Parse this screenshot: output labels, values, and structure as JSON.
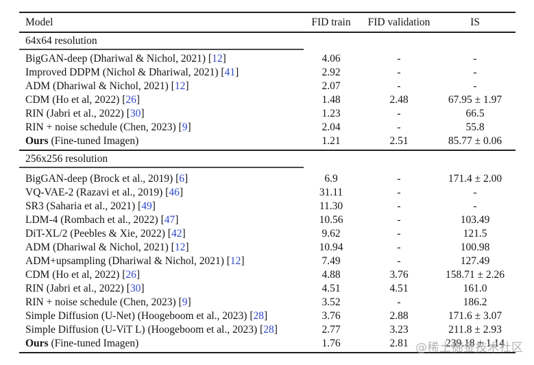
{
  "colors": {
    "citation_blue": "#2f45c5",
    "rule_dark": "#1f1f1f",
    "rule_section": "#4a4a4a",
    "watermark_gray": "#a8a3a3"
  },
  "watermark": {
    "text": "@稀土掘金技术社区"
  },
  "table": {
    "headers": [
      "Model",
      "FID train",
      "FID validation",
      "IS"
    ],
    "sections": [
      {
        "title": "64x64 resolution",
        "rows": [
          {
            "name_bold": "",
            "name": "BigGAN-deep (Dhariwal & Nichol, 2021)",
            "ref": "12",
            "fid_train": "4.06",
            "fid_validation": "-",
            "is": "-"
          },
          {
            "name_bold": "",
            "name": "Improved DDPM (Nichol & Dhariwal, 2021)",
            "ref": "41",
            "fid_train": "2.92",
            "fid_validation": "-",
            "is": "-"
          },
          {
            "name_bold": "",
            "name": "ADM (Dhariwal & Nichol, 2021)",
            "ref": "12",
            "fid_train": "2.07",
            "fid_validation": "-",
            "is": "-"
          },
          {
            "name_bold": "",
            "name": "CDM (Ho et al, 2022)",
            "ref": "26",
            "fid_train": "1.48",
            "fid_validation": "2.48",
            "is": "67.95 ± 1.97"
          },
          {
            "name_bold": "",
            "name": "RIN (Jabri et al., 2022)",
            "ref": "30",
            "fid_train": "1.23",
            "fid_validation": "-",
            "is": "66.5"
          },
          {
            "name_bold": "",
            "name": "RIN + noise schedule (Chen, 2023)",
            "ref": "9",
            "fid_train": "2.04",
            "fid_validation": "-",
            "is": "55.8"
          },
          {
            "name_bold": "Ours",
            "name": " (Fine-tuned Imagen)",
            "ref": null,
            "fid_train": "1.21",
            "fid_validation": "2.51",
            "is": "85.77 ± 0.06"
          }
        ]
      },
      {
        "title": "256x256 resolution",
        "rows": [
          {
            "name_bold": "",
            "name": "BigGAN-deep (Brock et al., 2019)",
            "ref": "6",
            "fid_train": "6.9",
            "fid_validation": "-",
            "is": "171.4 ± 2.00"
          },
          {
            "name_bold": "",
            "name": "VQ-VAE-2 (Razavi et al., 2019)",
            "ref": "46",
            "fid_train": "31.11",
            "fid_validation": "-",
            "is": "-"
          },
          {
            "name_bold": "",
            "name": "SR3 (Saharia et al., 2021)",
            "ref": "49",
            "fid_train": "11.30",
            "fid_validation": "-",
            "is": "-"
          },
          {
            "name_bold": "",
            "name": "LDM-4 (Rombach et al., 2022)",
            "ref": "47",
            "fid_train": "10.56",
            "fid_validation": "-",
            "is": "103.49"
          },
          {
            "name_bold": "",
            "name": "DiT-XL/2 (Peebles & Xie, 2022)",
            "ref": "42",
            "fid_train": "9.62",
            "fid_validation": "-",
            "is": "121.5"
          },
          {
            "name_bold": "",
            "name": "ADM (Dhariwal & Nichol, 2021)",
            "ref": "12",
            "fid_train": "10.94",
            "fid_validation": "-",
            "is": "100.98"
          },
          {
            "name_bold": "",
            "name": "ADM+upsampling (Dhariwal & Nichol, 2021)",
            "ref": "12",
            "fid_train": "7.49",
            "fid_validation": "-",
            "is": "127.49"
          },
          {
            "name_bold": "",
            "name": "CDM (Ho et al, 2022)",
            "ref": "26",
            "fid_train": "4.88",
            "fid_validation": "3.76",
            "is": "158.71 ± 2.26"
          },
          {
            "name_bold": "",
            "name": "RIN (Jabri et al., 2022)",
            "ref": "30",
            "fid_train": "4.51",
            "fid_validation": "4.51",
            "is": "161.0"
          },
          {
            "name_bold": "",
            "name": "RIN + noise schedule (Chen, 2023)",
            "ref": "9",
            "fid_train": "3.52",
            "fid_validation": "-",
            "is": "186.2"
          },
          {
            "name_bold": "",
            "name": "Simple Diffusion (U-Net) (Hoogeboom et al., 2023)",
            "ref": "28",
            "fid_train": "3.76",
            "fid_validation": "2.88",
            "is": "171.6 ± 3.07"
          },
          {
            "name_bold": "",
            "name": "Simple Diffusion (U-ViT L) (Hoogeboom et al., 2023)",
            "ref": "28",
            "fid_train": "2.77",
            "fid_validation": "3.23",
            "is": "211.8 ± 2.93"
          },
          {
            "name_bold": "Ours",
            "name": " (Fine-tuned Imagen)",
            "ref": null,
            "fid_train": "1.76",
            "fid_validation": "2.81",
            "is": "239.18 ± 1.14"
          }
        ]
      }
    ]
  }
}
